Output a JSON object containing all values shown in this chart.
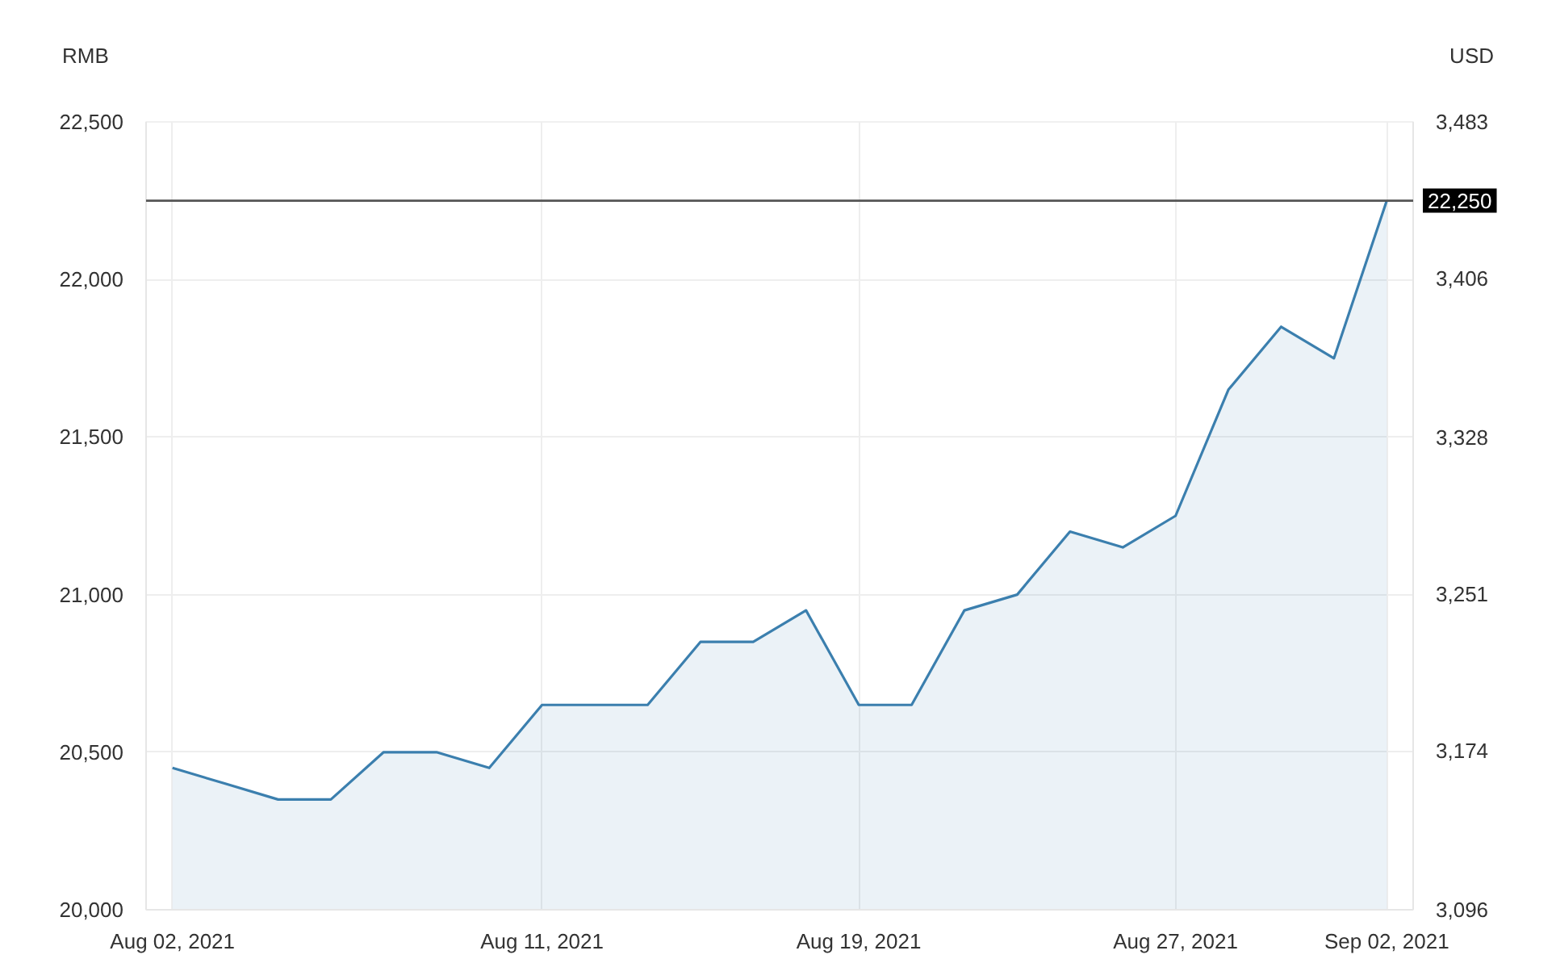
{
  "chart_data": {
    "type": "area",
    "ylabel": "RMB",
    "y2label": "USD",
    "categories": [
      "Aug 02, 2021",
      null,
      null,
      null,
      null,
      null,
      null,
      "Aug 11, 2021",
      null,
      null,
      null,
      null,
      null,
      "Aug 19, 2021",
      null,
      null,
      null,
      null,
      null,
      "Aug 27, 2021",
      null,
      null,
      null,
      "Sep 02, 2021"
    ],
    "values": [
      20450,
      20400,
      20350,
      20350,
      20500,
      20500,
      20450,
      20650,
      20650,
      20650,
      20850,
      20850,
      20950,
      20650,
      20650,
      20950,
      21000,
      21200,
      21150,
      21250,
      21650,
      21850,
      21750,
      22250
    ],
    "color": "#3b7fae",
    "ylim": [
      20000,
      22500
    ],
    "yticks": [
      {
        "value": 20000,
        "label": "20,000"
      },
      {
        "value": 20500,
        "label": "20,500"
      },
      {
        "value": 21000,
        "label": "21,000"
      },
      {
        "value": 21500,
        "label": "21,500"
      },
      {
        "value": 22000,
        "label": "22,000"
      },
      {
        "value": 22500,
        "label": "22,500"
      }
    ],
    "y2lim": [
      3096,
      3483
    ],
    "y2ticks": [
      {
        "value": 3096,
        "label": "3,096"
      },
      {
        "value": 3174,
        "label": "3,174"
      },
      {
        "value": 3251,
        "label": "3,251"
      },
      {
        "value": 3328,
        "label": "3,328"
      },
      {
        "value": 3406,
        "label": "3,406"
      },
      {
        "value": 3483,
        "label": "3,483"
      }
    ],
    "ref_lines": [
      {
        "axis": "y",
        "value": 22250,
        "label": "22,250",
        "color": "#555555"
      }
    ],
    "grid": true
  }
}
